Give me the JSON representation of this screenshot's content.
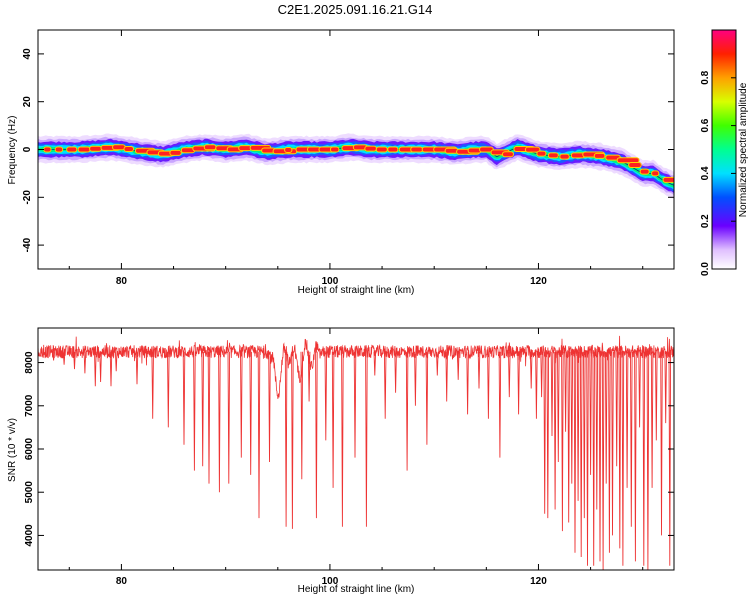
{
  "title": "C2E1.2025.091.16.21.G14",
  "chart_data": [
    {
      "type": "heatmap",
      "xlabel": "Height of straight line (km)",
      "ylabel": "Frequency (Hz)",
      "xlim": [
        72,
        133
      ],
      "ylim": [
        -50,
        50
      ],
      "xticks": [
        80,
        100,
        120
      ],
      "yticks": [
        -40,
        -20,
        0,
        20,
        40
      ],
      "colorbar": {
        "label": "Normalized spectral amplitude",
        "range": [
          0,
          1
        ],
        "ticks": [
          "0.0",
          "0.2",
          "0.4",
          "0.6",
          "0.8"
        ],
        "colormap": "rainbow"
      },
      "ridge": {
        "x": [
          72,
          76,
          79,
          82,
          84,
          86,
          88,
          90,
          92,
          94,
          96,
          98,
          100,
          102,
          104,
          106,
          108,
          110,
          112,
          114,
          115,
          116,
          118,
          120,
          122,
          124,
          126,
          128,
          130,
          131,
          132,
          133
        ],
        "y": [
          0,
          0,
          1,
          -1,
          -2,
          0,
          1,
          0,
          1,
          -1,
          0,
          0,
          0,
          1,
          0,
          0,
          0,
          0,
          -1,
          0,
          0,
          -3,
          1,
          -2,
          -3,
          -2,
          -3,
          -5,
          -10,
          -10,
          -13,
          -15
        ]
      }
    },
    {
      "type": "line",
      "xlabel": "Height of straight line (km)",
      "ylabel": "SNR (10 * v/v)",
      "xlim": [
        72,
        133
      ],
      "ylim": [
        3200,
        8800
      ],
      "xticks": [
        80,
        100,
        120
      ],
      "yticks": [
        4000,
        5000,
        6000,
        7000,
        8000
      ],
      "color": "#ee3333",
      "baseline": 8250,
      "noise": 150,
      "wiggles": [
        {
          "x": 95,
          "y": 7500
        },
        {
          "x": 97,
          "y": 7900
        },
        {
          "x": 98.5,
          "y": 8100
        }
      ],
      "dips": [
        {
          "x": 73.5,
          "y": 8050
        },
        {
          "x": 74.5,
          "y": 7950
        },
        {
          "x": 75.5,
          "y": 7850
        },
        {
          "x": 76.5,
          "y": 7750
        },
        {
          "x": 77.5,
          "y": 7450
        },
        {
          "x": 78,
          "y": 7550
        },
        {
          "x": 79,
          "y": 7450
        },
        {
          "x": 79.5,
          "y": 7800
        },
        {
          "x": 81.5,
          "y": 7500
        },
        {
          "x": 83,
          "y": 6700
        },
        {
          "x": 84.5,
          "y": 6500
        },
        {
          "x": 86,
          "y": 6100
        },
        {
          "x": 87,
          "y": 5500
        },
        {
          "x": 87.8,
          "y": 5600
        },
        {
          "x": 88.4,
          "y": 5200
        },
        {
          "x": 89.4,
          "y": 5000
        },
        {
          "x": 90.3,
          "y": 5200
        },
        {
          "x": 91.5,
          "y": 5800
        },
        {
          "x": 92.4,
          "y": 5400
        },
        {
          "x": 93.2,
          "y": 4400
        },
        {
          "x": 94.2,
          "y": 5700
        },
        {
          "x": 95.8,
          "y": 4200
        },
        {
          "x": 96.4,
          "y": 4150
        },
        {
          "x": 97.3,
          "y": 5300
        },
        {
          "x": 98,
          "y": 7100
        },
        {
          "x": 98.7,
          "y": 4400
        },
        {
          "x": 99.6,
          "y": 6200
        },
        {
          "x": 100.3,
          "y": 5100
        },
        {
          "x": 101.2,
          "y": 4200
        },
        {
          "x": 102.4,
          "y": 5800
        },
        {
          "x": 103.5,
          "y": 4200
        },
        {
          "x": 104.3,
          "y": 7700
        },
        {
          "x": 105.3,
          "y": 6700
        },
        {
          "x": 106.3,
          "y": 7300
        },
        {
          "x": 107.4,
          "y": 5500
        },
        {
          "x": 108.2,
          "y": 7000
        },
        {
          "x": 109.3,
          "y": 6100
        },
        {
          "x": 110.3,
          "y": 7700
        },
        {
          "x": 111.2,
          "y": 7100
        },
        {
          "x": 112.3,
          "y": 7600
        },
        {
          "x": 113.2,
          "y": 6800
        },
        {
          "x": 114.3,
          "y": 7400
        },
        {
          "x": 115.2,
          "y": 6700
        },
        {
          "x": 116.3,
          "y": 5800
        },
        {
          "x": 117.2,
          "y": 7200
        },
        {
          "x": 118.1,
          "y": 6800
        },
        {
          "x": 119.3,
          "y": 7400
        },
        {
          "x": 119.8,
          "y": 6700
        },
        {
          "x": 120.3,
          "y": 7200
        },
        {
          "x": 120.6,
          "y": 4500
        },
        {
          "x": 120.9,
          "y": 4400
        },
        {
          "x": 121.3,
          "y": 6300
        },
        {
          "x": 121.6,
          "y": 4600
        },
        {
          "x": 121.9,
          "y": 5700
        },
        {
          "x": 122.3,
          "y": 4100
        },
        {
          "x": 122.6,
          "y": 6400
        },
        {
          "x": 122.9,
          "y": 4300
        },
        {
          "x": 123.2,
          "y": 5200
        },
        {
          "x": 123.5,
          "y": 3600
        },
        {
          "x": 123.8,
          "y": 4800
        },
        {
          "x": 124.1,
          "y": 3500
        },
        {
          "x": 124.4,
          "y": 4400
        },
        {
          "x": 124.7,
          "y": 3300
        },
        {
          "x": 125,
          "y": 5400
        },
        {
          "x": 125.3,
          "y": 3300
        },
        {
          "x": 125.6,
          "y": 4600
        },
        {
          "x": 125.9,
          "y": 3400
        },
        {
          "x": 126.2,
          "y": 3200
        },
        {
          "x": 126.5,
          "y": 5200
        },
        {
          "x": 126.8,
          "y": 3600
        },
        {
          "x": 127.1,
          "y": 4000
        },
        {
          "x": 127.5,
          "y": 5600
        },
        {
          "x": 127.8,
          "y": 3700
        },
        {
          "x": 128.1,
          "y": 3300
        },
        {
          "x": 128.5,
          "y": 5100
        },
        {
          "x": 128.9,
          "y": 4200
        },
        {
          "x": 129.3,
          "y": 3400
        },
        {
          "x": 129.7,
          "y": 6500
        },
        {
          "x": 130.1,
          "y": 3300
        },
        {
          "x": 130.5,
          "y": 3200
        },
        {
          "x": 130.9,
          "y": 5100
        },
        {
          "x": 131.3,
          "y": 6200
        },
        {
          "x": 131.8,
          "y": 4000
        },
        {
          "x": 132.2,
          "y": 6600
        },
        {
          "x": 132.6,
          "y": 3300
        }
      ]
    }
  ]
}
